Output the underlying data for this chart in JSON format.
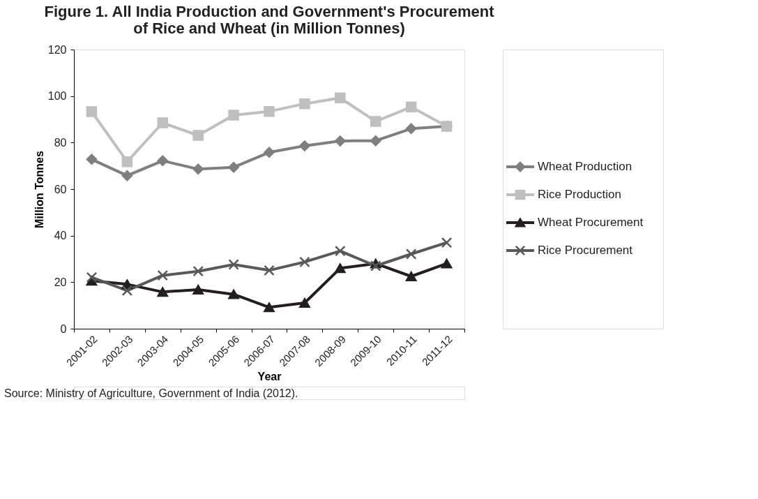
{
  "chart_data": {
    "type": "line",
    "title": "Figure 1. All India Production and Government's Procurement of Rice and Wheat (in Million Tonnes)",
    "xlabel": "Year",
    "ylabel": "Million Tonnes",
    "categories": [
      "2001-02",
      "2002-03",
      "2003-04",
      "2004-05",
      "2005-06",
      "2006-07",
      "2007-08",
      "2008-09",
      "2009-10",
      "2010-11",
      "2011-12"
    ],
    "series": [
      {
        "name": "Wheat Production",
        "color": "#7f7f7f",
        "marker": "diamond",
        "values": [
          72.8,
          65.8,
          72.2,
          68.6,
          69.4,
          75.8,
          78.6,
          80.7,
          80.8,
          86,
          87
        ]
      },
      {
        "name": "Rice Production",
        "color": "#bfbfbf",
        "marker": "square",
        "values": [
          93.3,
          71.8,
          88.5,
          83.1,
          91.8,
          93.4,
          96.7,
          99.2,
          89.1,
          95.3,
          87
        ]
      },
      {
        "name": "Wheat Procurement",
        "color": "#231f20",
        "marker": "triangle",
        "values": [
          20.6,
          19.1,
          15.8,
          16.8,
          14.8,
          9.2,
          11.1,
          26,
          28,
          22.5,
          28
        ]
      },
      {
        "name": "Rice Procurement",
        "color": "#595959",
        "marker": "cross",
        "values": [
          22.1,
          16.4,
          22.9,
          24.7,
          27.6,
          25.1,
          28.7,
          33.4,
          27,
          32.1,
          37
        ]
      }
    ],
    "ylim": [
      0,
      120
    ],
    "yticks": [
      0,
      20,
      40,
      60,
      80,
      100,
      120
    ],
    "legend": "right",
    "grid": false,
    "line_style": "solid",
    "annotations": [
      "Source: Ministry of Agriculture, Government of India (2012)."
    ]
  }
}
